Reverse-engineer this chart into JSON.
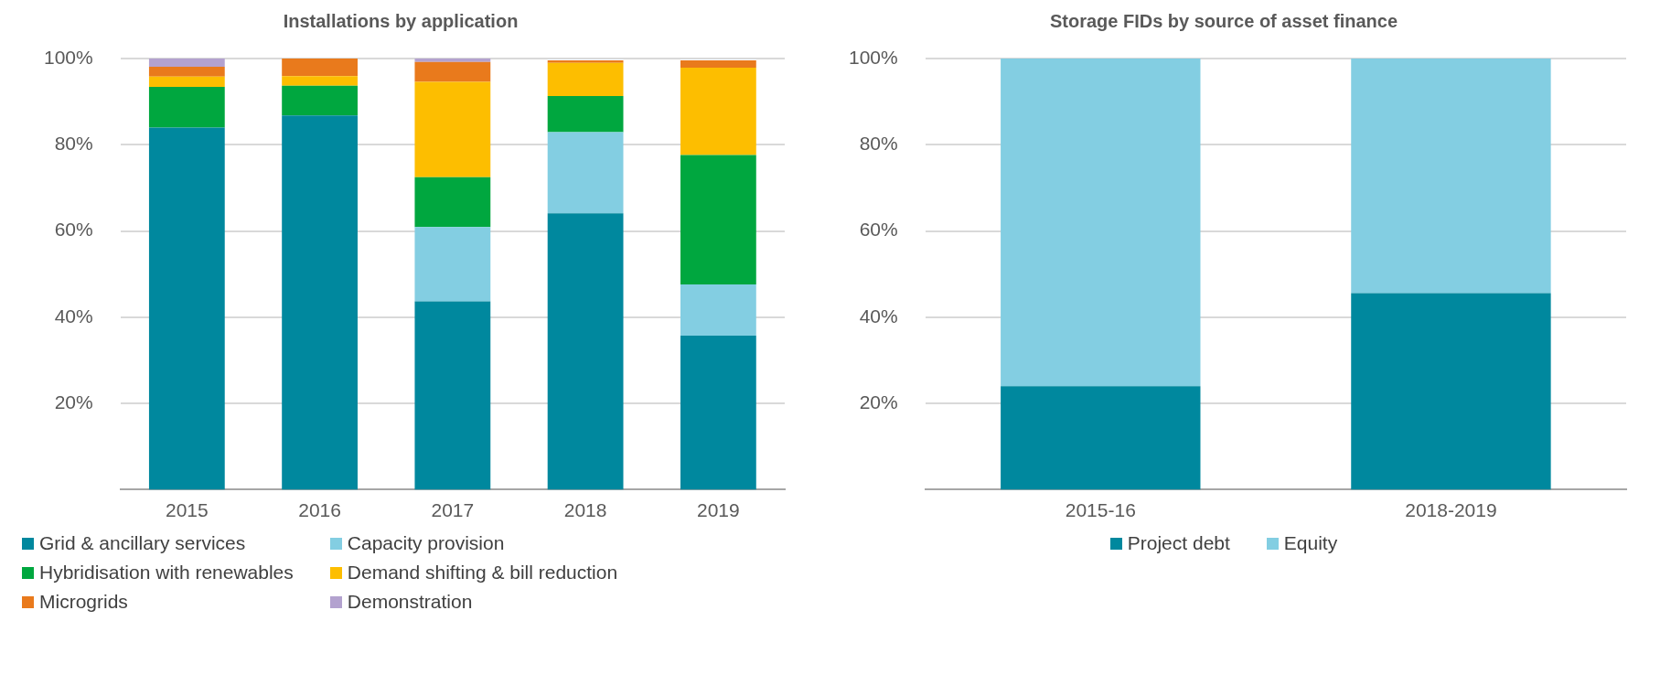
{
  "chart_data": [
    {
      "type": "bar",
      "title": "Installations by application",
      "categories": [
        "2015",
        "2016",
        "2017",
        "2018",
        "2019"
      ],
      "stacked": true,
      "ylim": [
        0,
        100
      ],
      "yticks": [
        {
          "value": 20,
          "label": "20%"
        },
        {
          "value": 40,
          "label": "40%"
        },
        {
          "value": 60,
          "label": "60%"
        },
        {
          "value": 80,
          "label": "80%"
        },
        {
          "value": 100,
          "label": "100%"
        }
      ],
      "grid": "y",
      "legend": "bottom",
      "series": [
        {
          "name": "Grid & ancillary services",
          "color": "#00889e",
          "values": [
            84,
            86.8,
            43.7,
            64.1,
            35.7
          ]
        },
        {
          "name": "Capacity provision",
          "color": "#83cee2",
          "values": [
            0,
            0,
            17.2,
            18.8,
            11.9
          ]
        },
        {
          "name": "Hybridisation with renewables",
          "color": "#00a73f",
          "values": [
            9.4,
            6.9,
            11.6,
            8.4,
            30
          ]
        },
        {
          "name": "Demand shifting & bill reduction",
          "color": "#fdbe00",
          "values": [
            2.4,
            2.2,
            22.1,
            7.7,
            20.3
          ]
        },
        {
          "name": "Microgrids",
          "color": "#e97a1c",
          "values": [
            2.3,
            4.1,
            4.6,
            0.6,
            1.7
          ]
        },
        {
          "name": "Demonstration",
          "color": "#b3a2cf",
          "values": [
            1.9,
            0,
            0.8,
            null,
            null
          ]
        }
      ]
    },
    {
      "type": "bar",
      "title": "Storage FIDs by source of asset finance",
      "categories": [
        "2015-16",
        "2018-2019"
      ],
      "stacked": true,
      "ylim": [
        0,
        100
      ],
      "yticks": [
        {
          "value": 20,
          "label": "20%"
        },
        {
          "value": 40,
          "label": "40%"
        },
        {
          "value": 60,
          "label": "60%"
        },
        {
          "value": 80,
          "label": "80%"
        },
        {
          "value": 100,
          "label": "100%"
        }
      ],
      "grid": "y",
      "legend": "bottom",
      "series": [
        {
          "name": "Project debt",
          "color": "#00889e",
          "values": [
            24,
            45.6
          ]
        },
        {
          "name": "Equity",
          "color": "#83cee2",
          "values": [
            76,
            54.4
          ]
        }
      ]
    }
  ]
}
